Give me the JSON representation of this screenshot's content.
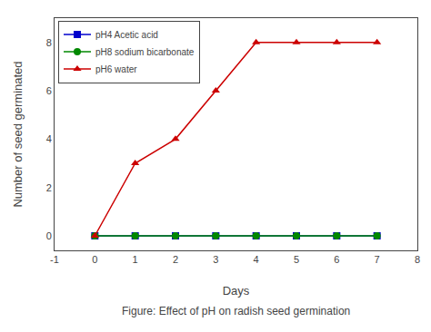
{
  "chart_data": {
    "type": "line",
    "x_label": "Days",
    "y_label": "Number of seed germinated",
    "x": [
      0,
      1,
      2,
      3,
      4,
      5,
      6,
      7
    ],
    "series": [
      {
        "name": "pH4 Acetic acid",
        "color": "#0000cc",
        "marker": "square",
        "values": [
          0,
          0,
          0,
          0,
          0,
          0,
          0,
          0
        ]
      },
      {
        "name": "pH8 sodium bicarbonate",
        "color": "#008800",
        "marker": "circle",
        "values": [
          0,
          0,
          0,
          0,
          0,
          0,
          0,
          0
        ]
      },
      {
        "name": "pH6 water",
        "color": "#cc0000",
        "marker": "triangle-up",
        "values": [
          0,
          3,
          4,
          6,
          8,
          8,
          8,
          8
        ]
      }
    ],
    "xlim": [
      -1,
      8
    ],
    "ylim": [
      -0.6,
      9
    ],
    "xticks": [
      -1,
      0,
      1,
      2,
      3,
      4,
      5,
      6,
      7,
      8
    ],
    "yticks": [
      0,
      2,
      4,
      6,
      8
    ],
    "legend": "upper left",
    "grid": false,
    "annotations": [
      "Figure: Effect of pH on radish seed germination"
    ]
  }
}
